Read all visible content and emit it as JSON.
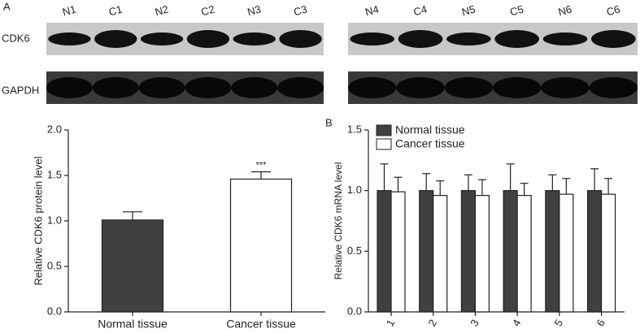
{
  "panel_labels": [
    "A",
    "B"
  ],
  "blot": {
    "rows": [
      "CDK6",
      "GAPDH"
    ],
    "lanes": [
      [
        "N1",
        "C1",
        "N2",
        "C2",
        "N3",
        "C3"
      ],
      [
        "N4",
        "C4",
        "N5",
        "C5",
        "N6",
        "C6"
      ]
    ]
  },
  "chart_data": [
    {
      "type": "bar",
      "ylabel": "Relative CDK6 protein level",
      "categories": [
        "Normal tissue",
        "Cancer tissue"
      ],
      "values": [
        1.01,
        1.46
      ],
      "errors": [
        0.09,
        0.08
      ],
      "colors": [
        "#404040",
        "#ffffff"
      ],
      "annotation": "***",
      "ylim": [
        0,
        2.0
      ],
      "yticks": [
        {
          "value": 0,
          "label": "0.0"
        },
        {
          "value": 0.5,
          "label": "0.5"
        },
        {
          "value": 1.0,
          "label": "1.0"
        },
        {
          "value": 1.5,
          "label": "1.5"
        },
        {
          "value": 2.0,
          "label": "2.0"
        }
      ]
    },
    {
      "type": "grouped_bar",
      "ylabel": "Relative CDK6 mRNA level",
      "categories": [
        "1",
        "2",
        "3",
        "4",
        "5",
        "6"
      ],
      "series": [
        {
          "name": "Normal tissue",
          "color": "#404040",
          "values": [
            1.0,
            1.0,
            1.0,
            1.0,
            1.0,
            1.0
          ],
          "errors": [
            0.22,
            0.14,
            0.13,
            0.22,
            0.13,
            0.18
          ]
        },
        {
          "name": "Cancer tissue",
          "color": "#ffffff",
          "values": [
            0.99,
            0.96,
            0.96,
            0.96,
            0.97,
            0.97
          ],
          "errors": [
            0.12,
            0.12,
            0.13,
            0.1,
            0.13,
            0.13
          ]
        }
      ],
      "legend": "upper left",
      "ylim": [
        0,
        1.5
      ],
      "yticks": [
        {
          "value": 0,
          "label": "0.0"
        },
        {
          "value": 0.5,
          "label": "0.5"
        },
        {
          "value": 1.0,
          "label": "1.0"
        },
        {
          "value": 1.5,
          "label": "1.5"
        }
      ]
    }
  ]
}
